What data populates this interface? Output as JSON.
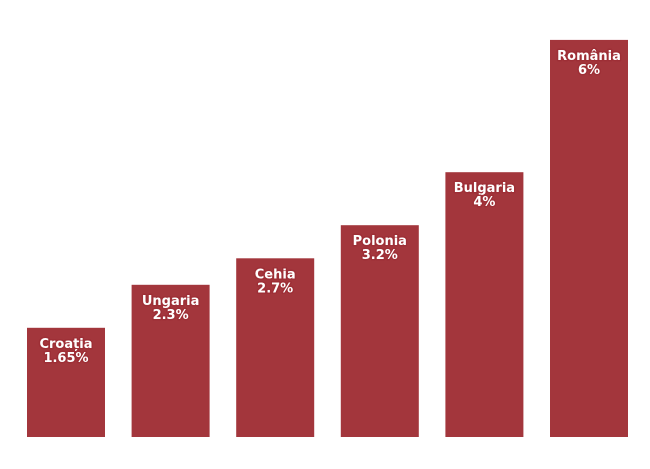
{
  "chart_data": {
    "type": "bar",
    "categories": [
      "Croația",
      "Ungaria",
      "Cehia",
      "Polonia",
      "Bulgaria",
      "România"
    ],
    "values": [
      1.65,
      2.3,
      2.7,
      3.2,
      4,
      6
    ],
    "value_labels": [
      "1.65%",
      "2.3%",
      "2.7%",
      "3.2%",
      "4%",
      "6%"
    ],
    "ylim": [
      0,
      6.3
    ],
    "grid": false,
    "legend": "none",
    "bar_color": "#a3363c",
    "label_color": "#ffffff",
    "title": "",
    "xlabel": "",
    "ylabel": ""
  }
}
